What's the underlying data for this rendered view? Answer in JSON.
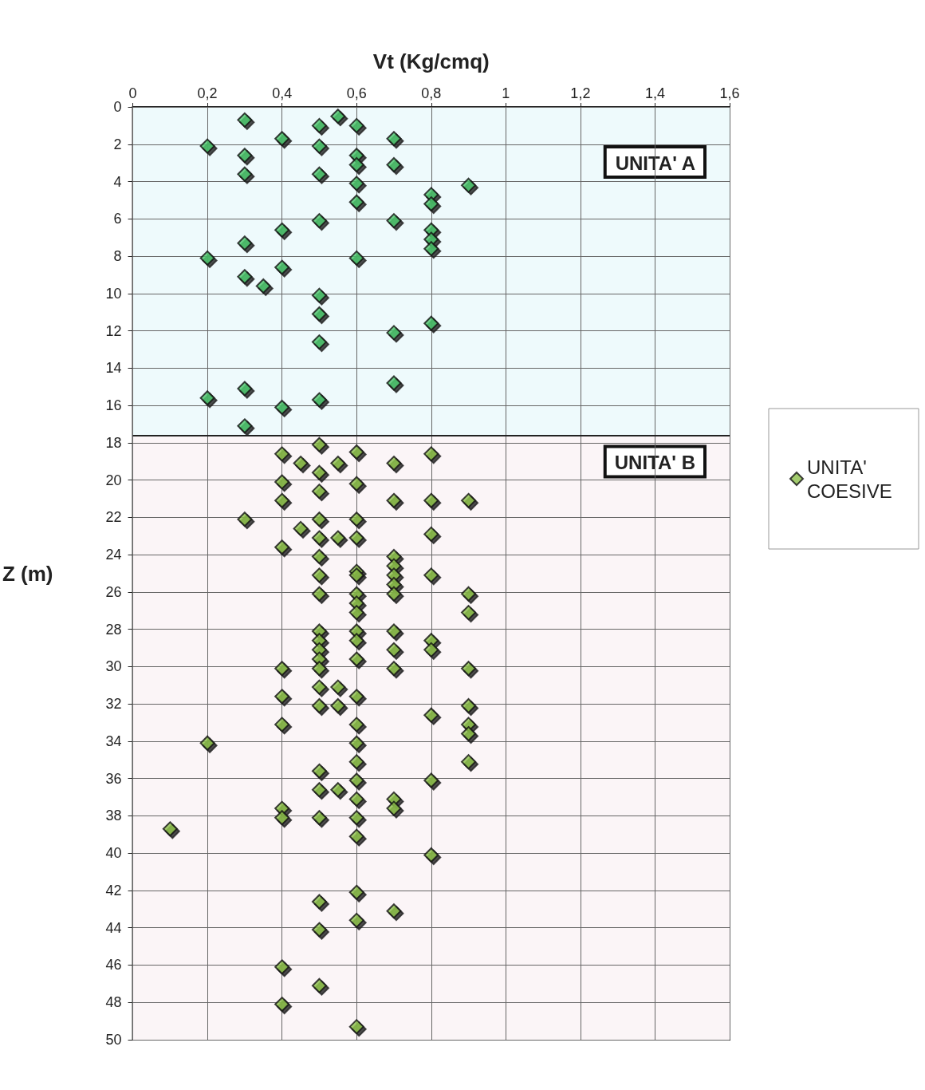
{
  "chart_data": {
    "type": "scatter",
    "xlabel": "Vt (Kg/cmq)",
    "ylabel": "Z (m)",
    "xlim": [
      0,
      1.6
    ],
    "xticks": [
      0,
      {
        "value": 0.2,
        "label": "0,2"
      },
      {
        "value": 0.4,
        "label": "0,4"
      },
      {
        "value": 0.6,
        "label": "0,6"
      },
      {
        "value": 0.8,
        "label": "0,8"
      },
      1,
      {
        "value": 1.2,
        "label": "1,2"
      },
      {
        "value": 1.4,
        "label": "1,4"
      },
      {
        "value": 1.6,
        "label": "1,6"
      }
    ],
    "ylim": [
      50,
      0
    ],
    "yticks": [
      0,
      2,
      4,
      6,
      8,
      10,
      12,
      14,
      16,
      18,
      20,
      22,
      24,
      26,
      28,
      30,
      32,
      34,
      36,
      38,
      40,
      42,
      44,
      46,
      48,
      50
    ],
    "grid": true,
    "marker": "diamond",
    "legend": "right",
    "bands": [
      {
        "axis": "y",
        "from": 0,
        "to": 17.6,
        "label": "UNITA' A",
        "color": "#eefafc"
      },
      {
        "axis": "y",
        "from": 17.6,
        "to": 50,
        "label": "UNITA' B",
        "color": "#fbf5f7"
      }
    ],
    "ref_lines": [
      {
        "axis": "y",
        "value": 17.6,
        "color": "#222222"
      }
    ],
    "series": [
      {
        "color": "#4cc46c",
        "x": [
          0.3,
          0.55,
          0.5,
          0.6,
          0.7,
          0.4,
          0.2,
          0.5,
          0.3,
          0.6,
          0.6,
          0.7,
          0.3,
          0.5,
          0.9,
          0.6,
          0.8,
          0.8,
          0.6,
          0.5,
          0.7,
          0.4,
          0.8,
          0.8,
          0.8,
          0.3,
          0.2,
          0.6,
          0.4,
          0.3,
          0.35,
          0.5,
          0.5,
          0.8,
          0.7,
          0.5,
          0.7,
          0.3,
          0.2,
          0.5,
          0.4,
          0.3
        ],
        "values": [
          0.7,
          0.5,
          1,
          1,
          1.7,
          1.7,
          2.1,
          2.1,
          2.6,
          2.6,
          3.1,
          3.1,
          3.6,
          3.6,
          4.2,
          4.1,
          4.7,
          5.2,
          5.1,
          6.1,
          6.1,
          6.6,
          6.6,
          7.1,
          7.6,
          7.3,
          8.1,
          8.1,
          8.6,
          9.1,
          9.6,
          10.1,
          11.1,
          11.6,
          12.1,
          12.6,
          14.8,
          15.1,
          15.6,
          15.7,
          16.1,
          17.1
        ]
      },
      {
        "name": "UNITA' COESIVE",
        "color": "#8cbf4a",
        "x": [
          0.5,
          0.4,
          0.6,
          0.8,
          0.45,
          0.55,
          0.7,
          0.5,
          0.4,
          0.6,
          0.4,
          0.5,
          0.7,
          0.8,
          0.9,
          0.3,
          0.5,
          0.6,
          0.45,
          0.5,
          0.55,
          0.6,
          0.8,
          0.4,
          0.5,
          0.7,
          0.7,
          0.7,
          0.7,
          0.7,
          0.6,
          0.6,
          0.5,
          0.8,
          0.5,
          0.6,
          0.6,
          0.6,
          0.9,
          0.9,
          0.5,
          0.5,
          0.5,
          0.5,
          0.5,
          0.6,
          0.6,
          0.6,
          0.7,
          0.7,
          0.7,
          0.8,
          0.8,
          0.4,
          0.9,
          0.5,
          0.55,
          0.4,
          0.6,
          0.5,
          0.55,
          0.8,
          0.9,
          0.4,
          0.6,
          0.9,
          0.9,
          0.2,
          0.6,
          0.6,
          0.9,
          0.5,
          0.6,
          0.8,
          0.5,
          0.55,
          0.6,
          0.7,
          0.7,
          0.4,
          0.4,
          0.5,
          0.6,
          0.1,
          0.6,
          0.8,
          0.6,
          0.5,
          0.7,
          0.6,
          0.5,
          0.4,
          0.5,
          0.4,
          0.6
        ],
        "values": [
          18.1,
          18.6,
          18.5,
          18.6,
          19.1,
          19.1,
          19.1,
          19.6,
          20.1,
          20.2,
          21.1,
          20.6,
          21.1,
          21.1,
          21.1,
          22.1,
          22.1,
          22.1,
          22.6,
          23.1,
          23.1,
          23.1,
          22.9,
          23.6,
          24.1,
          24.1,
          24.6,
          25.1,
          25.6,
          26.1,
          24.9,
          25.1,
          25.1,
          25.1,
          26.1,
          26.1,
          26.6,
          27.1,
          26.1,
          27.1,
          28.1,
          28.6,
          29.1,
          29.6,
          30.1,
          28.1,
          28.6,
          29.6,
          28.1,
          29.1,
          30.1,
          28.6,
          29.1,
          30.1,
          30.1,
          31.1,
          31.1,
          31.6,
          31.6,
          32.1,
          32.1,
          32.6,
          32.1,
          33.1,
          33.1,
          33.1,
          33.6,
          34.1,
          34.1,
          35.1,
          35.1,
          35.6,
          36.1,
          36.1,
          36.6,
          36.6,
          37.1,
          37.1,
          37.6,
          37.6,
          38.1,
          38.1,
          38.1,
          38.7,
          39.1,
          40.1,
          42.1,
          42.6,
          43.1,
          43.6,
          44.1,
          46.1,
          47.1,
          48.1,
          49.3
        ]
      }
    ]
  }
}
